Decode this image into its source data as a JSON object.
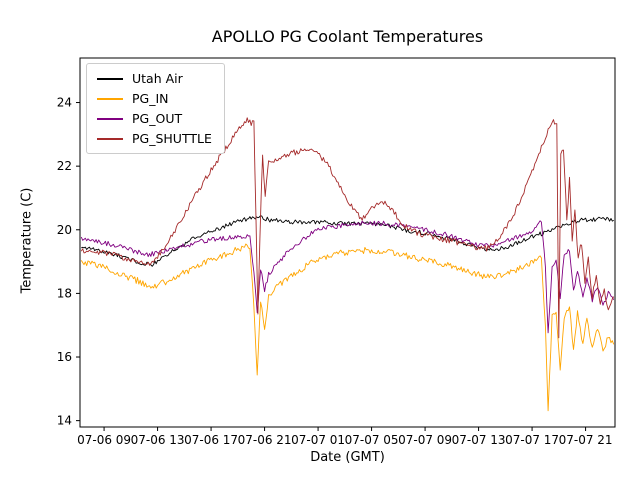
{
  "figure": {
    "background": "#ffffff"
  },
  "chart_data": {
    "type": "line",
    "title": "APOLLO PG Coolant Temperatures",
    "xlabel": "Date (GMT)",
    "ylabel": "Temperature (C)",
    "x_unit": "hours since 07-06 00:00 GMT",
    "xlim": [
      7.2,
      47.2
    ],
    "ylim": [
      13.8,
      25.4
    ],
    "grid": false,
    "legend_position": "upper left",
    "yticks": [
      14,
      16,
      18,
      20,
      22,
      24
    ],
    "xticks": [
      {
        "x": 9,
        "label": "07-06 09"
      },
      {
        "x": 13,
        "label": "07-06 13"
      },
      {
        "x": 17,
        "label": "07-06 17"
      },
      {
        "x": 21,
        "label": "07-06 21"
      },
      {
        "x": 25,
        "label": "07-07 01"
      },
      {
        "x": 29,
        "label": "07-07 05"
      },
      {
        "x": 33,
        "label": "07-07 09"
      },
      {
        "x": 37,
        "label": "07-07 13"
      },
      {
        "x": 41,
        "label": "07-07 17"
      },
      {
        "x": 45,
        "label": "07-07 21"
      }
    ],
    "series": [
      {
        "name": "Utah Air",
        "color": "#000000",
        "noise": 0.07,
        "points": [
          [
            7.3,
            19.45
          ],
          [
            9,
            19.3
          ],
          [
            10,
            19.2
          ],
          [
            11,
            19.05
          ],
          [
            12,
            18.95
          ],
          [
            12.6,
            18.9
          ],
          [
            13.2,
            19.05
          ],
          [
            14,
            19.3
          ],
          [
            15,
            19.55
          ],
          [
            16,
            19.8
          ],
          [
            17,
            19.95
          ],
          [
            18,
            20.1
          ],
          [
            19,
            20.3
          ],
          [
            20,
            20.35
          ],
          [
            20.6,
            20.4
          ],
          [
            21.5,
            20.3
          ],
          [
            23,
            20.25
          ],
          [
            25,
            20.25
          ],
          [
            27,
            20.2
          ],
          [
            29,
            20.2
          ],
          [
            30,
            20.15
          ],
          [
            31,
            20.05
          ],
          [
            32,
            19.95
          ],
          [
            33,
            19.9
          ],
          [
            34,
            19.8
          ],
          [
            35,
            19.7
          ],
          [
            36,
            19.55
          ],
          [
            37,
            19.45
          ],
          [
            37.6,
            19.35
          ],
          [
            38.5,
            19.4
          ],
          [
            39.5,
            19.5
          ],
          [
            40.5,
            19.7
          ],
          [
            41.5,
            19.85
          ],
          [
            42.5,
            20.0
          ],
          [
            43.5,
            20.15
          ],
          [
            44.5,
            20.3
          ],
          [
            45.5,
            20.3
          ],
          [
            46.2,
            20.35
          ],
          [
            47.1,
            20.3
          ]
        ]
      },
      {
        "name": "PG_IN",
        "color": "#FFA500",
        "noise": 0.1,
        "points": [
          [
            7.3,
            19.0
          ],
          [
            8.5,
            18.9
          ],
          [
            9.5,
            18.75
          ],
          [
            10.5,
            18.55
          ],
          [
            11.5,
            18.4
          ],
          [
            12.3,
            18.25
          ],
          [
            12.8,
            18.2
          ],
          [
            13.5,
            18.35
          ],
          [
            14.5,
            18.55
          ],
          [
            15.5,
            18.75
          ],
          [
            16.5,
            18.95
          ],
          [
            17.5,
            19.15
          ],
          [
            18.5,
            19.3
          ],
          [
            19.4,
            19.45
          ],
          [
            19.9,
            19.5
          ],
          [
            20.2,
            17.6
          ],
          [
            20.45,
            15.4
          ],
          [
            20.7,
            17.8
          ],
          [
            21.0,
            16.9
          ],
          [
            21.3,
            17.9
          ],
          [
            21.8,
            18.15
          ],
          [
            22.5,
            18.4
          ],
          [
            23.5,
            18.7
          ],
          [
            24.5,
            18.95
          ],
          [
            25.5,
            19.15
          ],
          [
            26.5,
            19.25
          ],
          [
            27.5,
            19.3
          ],
          [
            28.5,
            19.35
          ],
          [
            29.5,
            19.3
          ],
          [
            30.5,
            19.28
          ],
          [
            31.5,
            19.2
          ],
          [
            32.5,
            19.1
          ],
          [
            33.5,
            19.0
          ],
          [
            34.5,
            18.9
          ],
          [
            35.5,
            18.78
          ],
          [
            36.5,
            18.65
          ],
          [
            37.3,
            18.55
          ],
          [
            38,
            18.5
          ],
          [
            39,
            18.6
          ],
          [
            40,
            18.78
          ],
          [
            41,
            18.95
          ],
          [
            41.7,
            19.1
          ],
          [
            42.0,
            17.0
          ],
          [
            42.2,
            14.3
          ],
          [
            42.5,
            17.3
          ],
          [
            42.8,
            17.5
          ],
          [
            43.1,
            15.6
          ],
          [
            43.4,
            17.3
          ],
          [
            43.8,
            17.5
          ],
          [
            44.1,
            16.2
          ],
          [
            44.4,
            17.4
          ],
          [
            44.8,
            16.4
          ],
          [
            45.1,
            17.2
          ],
          [
            45.5,
            16.3
          ],
          [
            45.9,
            16.9
          ],
          [
            46.3,
            16.2
          ],
          [
            46.7,
            16.6
          ],
          [
            47.1,
            16.4
          ]
        ]
      },
      {
        "name": "PG_OUT",
        "color": "#800080",
        "noise": 0.08,
        "points": [
          [
            7.3,
            19.75
          ],
          [
            8.5,
            19.65
          ],
          [
            9.5,
            19.55
          ],
          [
            10.5,
            19.42
          ],
          [
            11.5,
            19.3
          ],
          [
            12.4,
            19.22
          ],
          [
            13,
            19.28
          ],
          [
            14,
            19.4
          ],
          [
            15,
            19.5
          ],
          [
            16,
            19.6
          ],
          [
            17,
            19.68
          ],
          [
            18,
            19.74
          ],
          [
            19,
            19.8
          ],
          [
            19.9,
            19.82
          ],
          [
            20.2,
            18.6
          ],
          [
            20.45,
            17.4
          ],
          [
            20.7,
            18.8
          ],
          [
            21.0,
            18.1
          ],
          [
            21.3,
            18.6
          ],
          [
            21.8,
            18.85
          ],
          [
            22.5,
            19.2
          ],
          [
            23.5,
            19.6
          ],
          [
            24.5,
            19.9
          ],
          [
            25.5,
            20.05
          ],
          [
            26.5,
            20.12
          ],
          [
            27.5,
            20.18
          ],
          [
            28.5,
            20.2
          ],
          [
            29.5,
            20.2
          ],
          [
            30.5,
            20.18
          ],
          [
            31.5,
            20.12
          ],
          [
            32.5,
            20.05
          ],
          [
            33.5,
            19.95
          ],
          [
            34.5,
            19.85
          ],
          [
            35.5,
            19.72
          ],
          [
            36.5,
            19.6
          ],
          [
            37.3,
            19.5
          ],
          [
            38,
            19.52
          ],
          [
            39,
            19.62
          ],
          [
            40,
            19.78
          ],
          [
            41,
            19.98
          ],
          [
            41.7,
            20.25
          ],
          [
            42.0,
            18.8
          ],
          [
            42.2,
            16.7
          ],
          [
            42.5,
            18.9
          ],
          [
            42.8,
            19.05
          ],
          [
            43.1,
            17.9
          ],
          [
            43.4,
            19.2
          ],
          [
            43.8,
            19.35
          ],
          [
            44.1,
            18.1
          ],
          [
            44.4,
            18.7
          ],
          [
            44.8,
            17.9
          ],
          [
            45.1,
            18.5
          ],
          [
            45.5,
            17.8
          ],
          [
            45.9,
            18.2
          ],
          [
            46.3,
            17.6
          ],
          [
            46.7,
            18.0
          ],
          [
            47.1,
            17.8
          ]
        ]
      },
      {
        "name": "PG_SHUTTLE",
        "color": "#A52A2A",
        "noise": 0.09,
        "points": [
          [
            7.3,
            19.35
          ],
          [
            8.5,
            19.3
          ],
          [
            9.5,
            19.25
          ],
          [
            10.5,
            19.1
          ],
          [
            11.5,
            19.0
          ],
          [
            12.4,
            18.95
          ],
          [
            13.0,
            19.15
          ],
          [
            13.6,
            19.5
          ],
          [
            14.2,
            19.9
          ],
          [
            15,
            20.5
          ],
          [
            16,
            21.2
          ],
          [
            17,
            21.9
          ],
          [
            18,
            22.5
          ],
          [
            18.8,
            23.0
          ],
          [
            19.3,
            23.3
          ],
          [
            19.7,
            23.45
          ],
          [
            20.0,
            23.35
          ],
          [
            20.2,
            23.4
          ],
          [
            20.35,
            20.5
          ],
          [
            20.5,
            17.3
          ],
          [
            20.65,
            19.8
          ],
          [
            20.85,
            22.3
          ],
          [
            21.05,
            21.0
          ],
          [
            21.3,
            22.25
          ],
          [
            21.7,
            22.1
          ],
          [
            22.2,
            22.3
          ],
          [
            22.8,
            22.4
          ],
          [
            23.5,
            22.45
          ],
          [
            24.2,
            22.5
          ],
          [
            24.8,
            22.42
          ],
          [
            25.3,
            22.25
          ],
          [
            25.8,
            22.0
          ],
          [
            26.3,
            21.6
          ],
          [
            26.8,
            21.2
          ],
          [
            27.3,
            20.85
          ],
          [
            27.8,
            20.55
          ],
          [
            28.2,
            20.35
          ],
          [
            28.7,
            20.5
          ],
          [
            29.2,
            20.75
          ],
          [
            29.7,
            20.9
          ],
          [
            30.2,
            20.8
          ],
          [
            30.7,
            20.55
          ],
          [
            31.2,
            20.25
          ],
          [
            31.7,
            20.05
          ],
          [
            32.3,
            19.92
          ],
          [
            33.2,
            19.82
          ],
          [
            34.2,
            19.72
          ],
          [
            35.2,
            19.62
          ],
          [
            36.2,
            19.5
          ],
          [
            37.0,
            19.42
          ],
          [
            37.6,
            19.42
          ],
          [
            38.2,
            19.6
          ],
          [
            38.8,
            19.9
          ],
          [
            39.4,
            20.3
          ],
          [
            40.0,
            20.8
          ],
          [
            40.6,
            21.4
          ],
          [
            41.2,
            22.0
          ],
          [
            41.8,
            22.7
          ],
          [
            42.3,
            23.2
          ],
          [
            42.6,
            23.4
          ],
          [
            42.85,
            23.35
          ],
          [
            43.0,
            16.6
          ],
          [
            43.15,
            22.45
          ],
          [
            43.35,
            22.5
          ],
          [
            43.6,
            20.3
          ],
          [
            43.8,
            21.6
          ],
          [
            44.0,
            19.6
          ],
          [
            44.2,
            20.6
          ],
          [
            44.45,
            19.1
          ],
          [
            44.7,
            19.6
          ],
          [
            44.95,
            18.3
          ],
          [
            45.2,
            19.1
          ],
          [
            45.5,
            17.9
          ],
          [
            45.8,
            18.6
          ],
          [
            46.1,
            17.7
          ],
          [
            46.4,
            18.1
          ],
          [
            46.7,
            17.5
          ],
          [
            47.1,
            17.9
          ]
        ]
      }
    ]
  }
}
